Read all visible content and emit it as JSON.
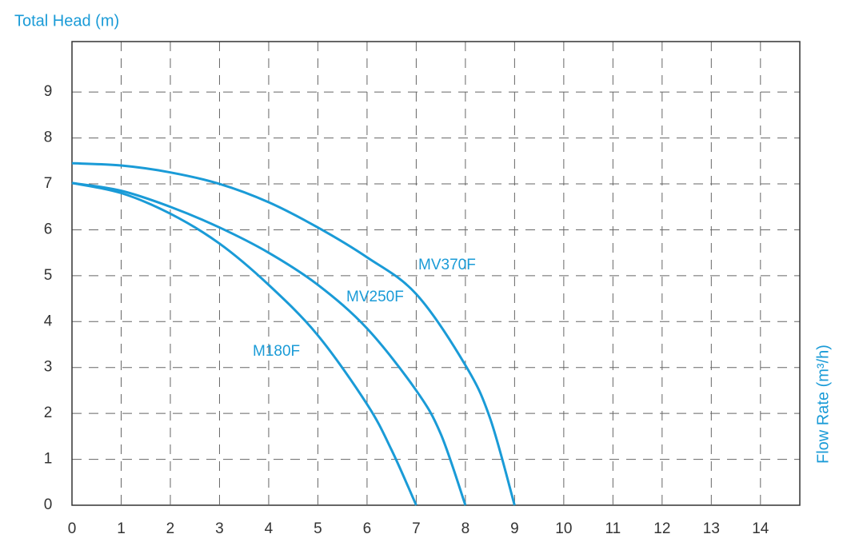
{
  "chart_data": {
    "type": "line",
    "y_label": "Total Head (m)",
    "x_label": "Flow Rate (m³/h)",
    "xlim": [
      0,
      14.8
    ],
    "ylim": [
      0,
      10.1
    ],
    "xticks": [
      0,
      1,
      2,
      3,
      4,
      5,
      6,
      7,
      8,
      9,
      10,
      11,
      12,
      13,
      14
    ],
    "yticks": [
      0,
      1,
      2,
      3,
      4,
      5,
      6,
      7,
      8,
      9
    ],
    "grid": true,
    "series": [
      {
        "name": "MV370F",
        "color": "#1a9bd7",
        "x": [
          0,
          1,
          2,
          3,
          4,
          5,
          6,
          7,
          8,
          8.5,
          9
        ],
        "values": [
          7.45,
          7.4,
          7.25,
          7.0,
          6.6,
          6.05,
          5.4,
          4.6,
          3.05,
          1.9,
          0
        ]
      },
      {
        "name": "MV250F",
        "color": "#1a9bd7",
        "x": [
          0,
          1,
          2,
          3,
          4,
          5,
          6,
          7,
          7.5,
          8
        ],
        "values": [
          7.02,
          6.85,
          6.5,
          6.05,
          5.5,
          4.8,
          3.85,
          2.5,
          1.55,
          0
        ]
      },
      {
        "name": "M180F",
        "color": "#1a9bd7",
        "x": [
          0,
          1,
          2,
          3,
          4,
          5,
          6,
          6.5,
          7
        ],
        "values": [
          7.02,
          6.8,
          6.35,
          5.7,
          4.8,
          3.7,
          2.2,
          1.2,
          0
        ]
      }
    ]
  }
}
